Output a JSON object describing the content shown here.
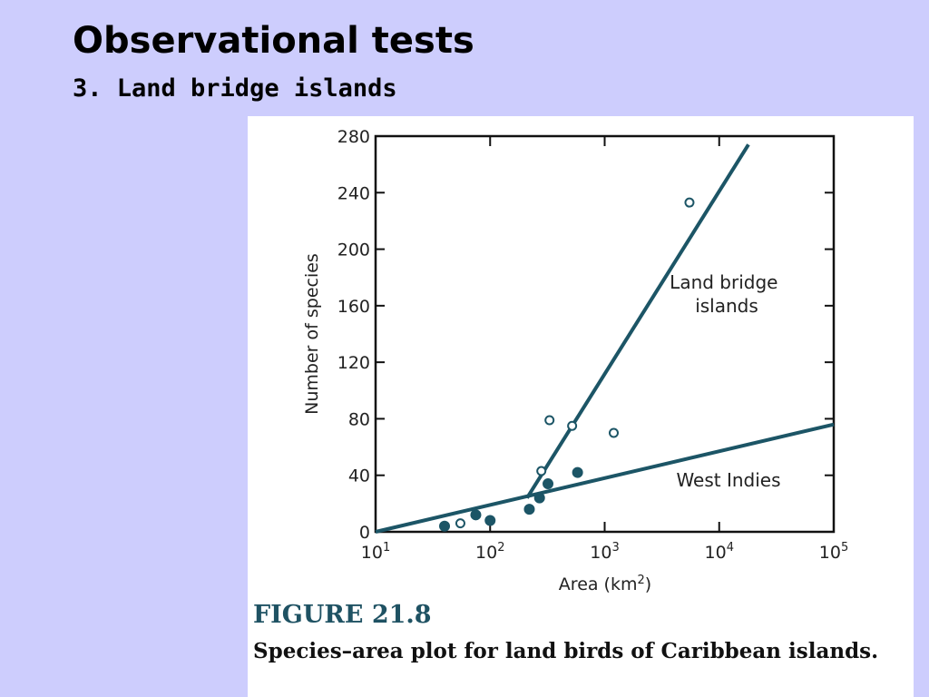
{
  "slide": {
    "title": "Observational tests",
    "subtitle": "3. Land bridge islands"
  },
  "figure": {
    "label": "FIGURE 21.8",
    "caption": "Species–area plot for land birds of Caribbean islands."
  },
  "colors": {
    "background": "#cdcdfd",
    "line": "#1c5566",
    "figure_label": "#1f5263"
  },
  "chart_data": {
    "type": "scatter",
    "xlabel": "Area (km²)",
    "ylabel": "Number of species",
    "x_scale": "log",
    "xlim": [
      10,
      100000
    ],
    "ylim": [
      0,
      280
    ],
    "x_ticks": [
      {
        "value": 10,
        "base": "10",
        "exp": "1"
      },
      {
        "value": 100,
        "base": "10",
        "exp": "2"
      },
      {
        "value": 1000,
        "base": "10",
        "exp": "3"
      },
      {
        "value": 10000,
        "base": "10",
        "exp": "4"
      },
      {
        "value": 100000,
        "base": "10",
        "exp": "5"
      }
    ],
    "y_ticks": [
      0,
      40,
      80,
      120,
      160,
      200,
      240,
      280
    ],
    "grid": false,
    "series": [
      {
        "name": "West Indies",
        "marker": "filled-circle",
        "points": [
          {
            "x": 40,
            "y": 4
          },
          {
            "x": 75,
            "y": 12
          },
          {
            "x": 100,
            "y": 8
          },
          {
            "x": 220,
            "y": 16
          },
          {
            "x": 270,
            "y": 24
          },
          {
            "x": 320,
            "y": 34
          },
          {
            "x": 580,
            "y": 42
          }
        ],
        "fit_line": [
          {
            "x": 10,
            "y": 0
          },
          {
            "x": 100000,
            "y": 76
          }
        ]
      },
      {
        "name": "Land bridge islands",
        "label_lines": [
          "Land bridge",
          "islands"
        ],
        "marker": "open-circle",
        "points": [
          {
            "x": 55,
            "y": 6
          },
          {
            "x": 280,
            "y": 43
          },
          {
            "x": 330,
            "y": 79
          },
          {
            "x": 520,
            "y": 75
          },
          {
            "x": 1200,
            "y": 70
          },
          {
            "x": 5500,
            "y": 233
          }
        ],
        "fit_line": [
          {
            "x": 210,
            "y": 24
          },
          {
            "x": 18000,
            "y": 274
          }
        ]
      }
    ]
  }
}
